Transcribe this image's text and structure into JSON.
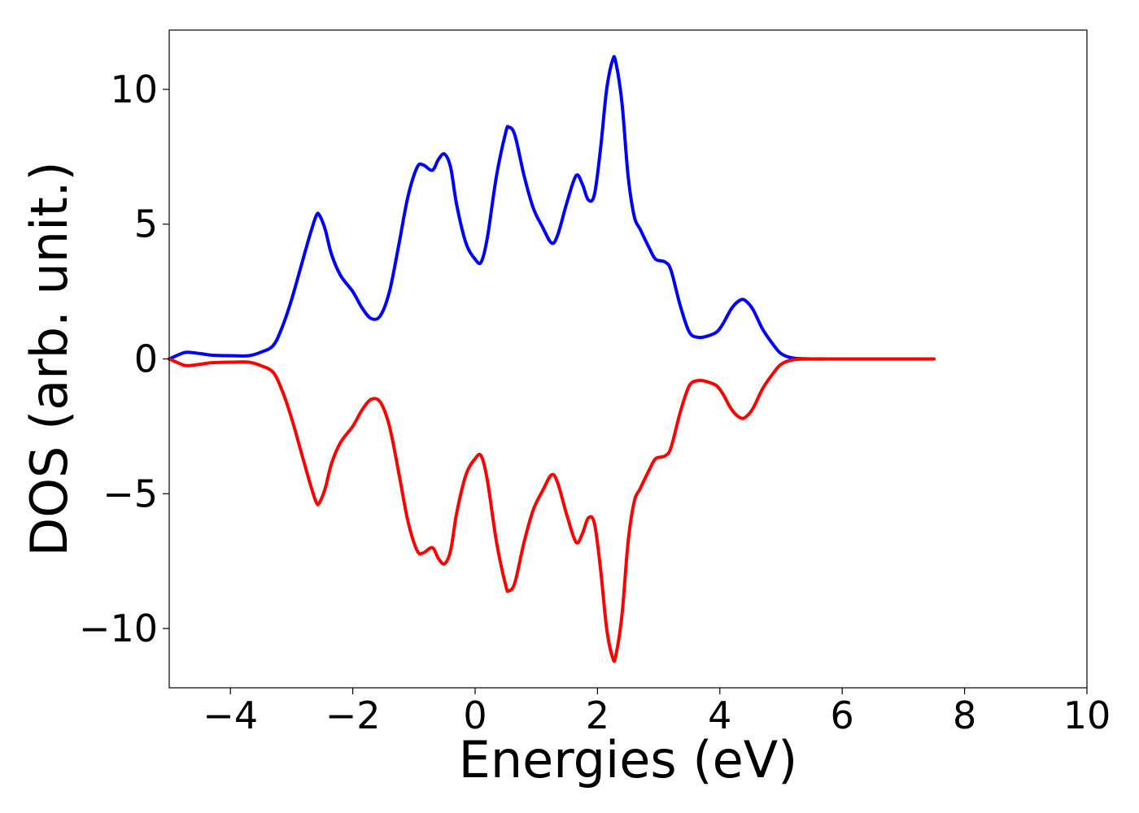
{
  "chart_data": {
    "type": "line",
    "xlabel": "Energies (eV)",
    "ylabel": "DOS (arb. unit.)",
    "xlim": [
      -5,
      10
    ],
    "ylim": [
      -12.2,
      12.2
    ],
    "x_ticks": [
      -4,
      -2,
      0,
      2,
      4,
      6,
      8,
      10
    ],
    "x_tick_labels": [
      "−4",
      "−2",
      "0",
      "2",
      "4",
      "6",
      "8",
      "10"
    ],
    "y_ticks": [
      -10,
      -5,
      0,
      5,
      10
    ],
    "y_tick_labels": [
      "−10",
      "−5",
      "0",
      "5",
      "10"
    ],
    "grid": false,
    "series": [
      {
        "color": "#0000ff",
        "points": [
          [
            -5.0,
            0.0
          ],
          [
            -4.8,
            0.2
          ],
          [
            -4.7,
            0.25
          ],
          [
            -4.5,
            0.2
          ],
          [
            -4.3,
            0.14
          ],
          [
            -4.0,
            0.12
          ],
          [
            -3.7,
            0.12
          ],
          [
            -3.5,
            0.25
          ],
          [
            -3.3,
            0.5
          ],
          [
            -3.15,
            1.2
          ],
          [
            -3.0,
            2.2
          ],
          [
            -2.85,
            3.4
          ],
          [
            -2.7,
            4.6
          ],
          [
            -2.6,
            5.3
          ],
          [
            -2.55,
            5.35
          ],
          [
            -2.45,
            4.8
          ],
          [
            -2.35,
            3.9
          ],
          [
            -2.2,
            3.1
          ],
          [
            -2.0,
            2.5
          ],
          [
            -1.85,
            1.9
          ],
          [
            -1.7,
            1.5
          ],
          [
            -1.55,
            1.6
          ],
          [
            -1.4,
            2.5
          ],
          [
            -1.25,
            4.2
          ],
          [
            -1.1,
            6.0
          ],
          [
            -0.95,
            7.1
          ],
          [
            -0.85,
            7.2
          ],
          [
            -0.7,
            7.0
          ],
          [
            -0.6,
            7.4
          ],
          [
            -0.5,
            7.6
          ],
          [
            -0.4,
            7.1
          ],
          [
            -0.3,
            5.7
          ],
          [
            -0.15,
            4.3
          ],
          [
            0.0,
            3.7
          ],
          [
            0.1,
            3.6
          ],
          [
            0.2,
            4.5
          ],
          [
            0.35,
            6.8
          ],
          [
            0.5,
            8.4
          ],
          [
            0.55,
            8.6
          ],
          [
            0.65,
            8.3
          ],
          [
            0.8,
            6.8
          ],
          [
            0.95,
            5.6
          ],
          [
            1.1,
            4.9
          ],
          [
            1.25,
            4.3
          ],
          [
            1.35,
            4.6
          ],
          [
            1.5,
            5.8
          ],
          [
            1.65,
            6.8
          ],
          [
            1.75,
            6.5
          ],
          [
            1.85,
            5.9
          ],
          [
            1.95,
            6.1
          ],
          [
            2.05,
            7.8
          ],
          [
            2.15,
            10.0
          ],
          [
            2.25,
            11.1
          ],
          [
            2.3,
            11.0
          ],
          [
            2.4,
            9.5
          ],
          [
            2.5,
            6.8
          ],
          [
            2.6,
            5.3
          ],
          [
            2.7,
            4.8
          ],
          [
            2.85,
            4.1
          ],
          [
            2.95,
            3.7
          ],
          [
            3.1,
            3.6
          ],
          [
            3.2,
            3.3
          ],
          [
            3.35,
            2.0
          ],
          [
            3.5,
            1.0
          ],
          [
            3.65,
            0.8
          ],
          [
            3.8,
            0.85
          ],
          [
            3.95,
            1.0
          ],
          [
            4.05,
            1.3
          ],
          [
            4.2,
            1.9
          ],
          [
            4.35,
            2.2
          ],
          [
            4.45,
            2.1
          ],
          [
            4.55,
            1.8
          ],
          [
            4.7,
            1.1
          ],
          [
            4.85,
            0.6
          ],
          [
            5.0,
            0.2
          ],
          [
            5.2,
            0.03
          ],
          [
            5.5,
            0.0
          ],
          [
            6.0,
            0.0
          ],
          [
            7.0,
            0.0
          ],
          [
            7.5,
            0.0
          ]
        ]
      },
      {
        "color": "#ff0000",
        "points": [
          [
            -5.0,
            0.0
          ],
          [
            -4.8,
            -0.2
          ],
          [
            -4.7,
            -0.25
          ],
          [
            -4.5,
            -0.2
          ],
          [
            -4.3,
            -0.14
          ],
          [
            -4.0,
            -0.12
          ],
          [
            -3.7,
            -0.12
          ],
          [
            -3.5,
            -0.25
          ],
          [
            -3.3,
            -0.5
          ],
          [
            -3.15,
            -1.2
          ],
          [
            -3.0,
            -2.2
          ],
          [
            -2.85,
            -3.4
          ],
          [
            -2.7,
            -4.6
          ],
          [
            -2.6,
            -5.3
          ],
          [
            -2.55,
            -5.35
          ],
          [
            -2.45,
            -4.8
          ],
          [
            -2.35,
            -3.9
          ],
          [
            -2.2,
            -3.1
          ],
          [
            -2.0,
            -2.5
          ],
          [
            -1.85,
            -1.9
          ],
          [
            -1.7,
            -1.5
          ],
          [
            -1.55,
            -1.6
          ],
          [
            -1.4,
            -2.5
          ],
          [
            -1.25,
            -4.2
          ],
          [
            -1.1,
            -6.0
          ],
          [
            -0.95,
            -7.1
          ],
          [
            -0.85,
            -7.2
          ],
          [
            -0.7,
            -7.0
          ],
          [
            -0.6,
            -7.4
          ],
          [
            -0.5,
            -7.6
          ],
          [
            -0.4,
            -7.1
          ],
          [
            -0.3,
            -5.7
          ],
          [
            -0.15,
            -4.3
          ],
          [
            0.0,
            -3.7
          ],
          [
            0.1,
            -3.6
          ],
          [
            0.2,
            -4.5
          ],
          [
            0.35,
            -6.8
          ],
          [
            0.5,
            -8.4
          ],
          [
            0.55,
            -8.6
          ],
          [
            0.65,
            -8.3
          ],
          [
            0.8,
            -6.8
          ],
          [
            0.95,
            -5.6
          ],
          [
            1.1,
            -4.9
          ],
          [
            1.25,
            -4.3
          ],
          [
            1.35,
            -4.6
          ],
          [
            1.5,
            -5.8
          ],
          [
            1.65,
            -6.8
          ],
          [
            1.75,
            -6.5
          ],
          [
            1.85,
            -5.9
          ],
          [
            1.95,
            -6.1
          ],
          [
            2.05,
            -7.8
          ],
          [
            2.15,
            -10.0
          ],
          [
            2.25,
            -11.1
          ],
          [
            2.3,
            -11.0
          ],
          [
            2.4,
            -9.5
          ],
          [
            2.5,
            -6.8
          ],
          [
            2.6,
            -5.3
          ],
          [
            2.7,
            -4.8
          ],
          [
            2.85,
            -4.1
          ],
          [
            2.95,
            -3.7
          ],
          [
            3.1,
            -3.6
          ],
          [
            3.2,
            -3.3
          ],
          [
            3.35,
            -2.0
          ],
          [
            3.5,
            -1.0
          ],
          [
            3.65,
            -0.8
          ],
          [
            3.8,
            -0.85
          ],
          [
            3.95,
            -1.0
          ],
          [
            4.05,
            -1.3
          ],
          [
            4.2,
            -1.9
          ],
          [
            4.35,
            -2.2
          ],
          [
            4.45,
            -2.1
          ],
          [
            4.55,
            -1.8
          ],
          [
            4.7,
            -1.1
          ],
          [
            4.85,
            -0.6
          ],
          [
            5.0,
            -0.2
          ],
          [
            5.2,
            -0.03
          ],
          [
            5.5,
            0.0
          ],
          [
            6.0,
            0.0
          ],
          [
            7.0,
            0.0
          ],
          [
            7.5,
            0.0
          ]
        ]
      }
    ]
  }
}
